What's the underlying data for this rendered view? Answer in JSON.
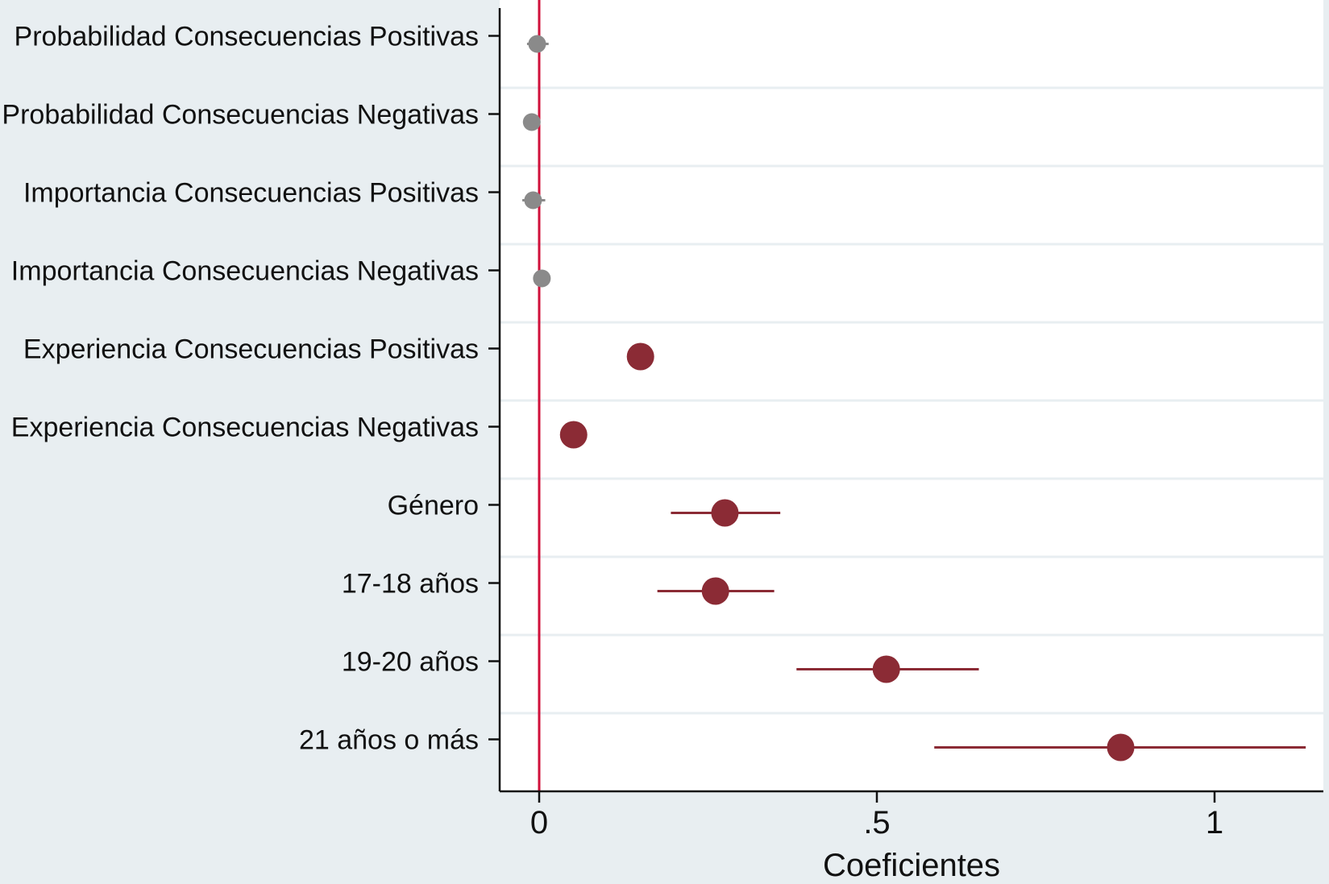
{
  "chart_data": {
    "type": "scatter",
    "title": "",
    "xlabel": "Coeficientes",
    "ylabel": "",
    "xlim": [
      -0.06,
      1.16
    ],
    "x_ticks": [
      {
        "value": 0,
        "label": "0"
      },
      {
        "value": 0.5,
        "label": ".5"
      },
      {
        "value": 1,
        "label": "1"
      }
    ],
    "grid": "horizontal",
    "reference_line": {
      "x": 0,
      "color": "#d0103a"
    },
    "colors": {
      "significant": "#8b2b35",
      "non_significant": "#8a8a8a",
      "axis": "#111111",
      "grid": "#e8eef1",
      "plot_background": "#ffffff",
      "figure_background": "#e8eef1"
    },
    "points": [
      {
        "label": "Probabilidad Consecuencias Positivas",
        "estimate": -0.003,
        "ci_low": -0.018,
        "ci_high": 0.014,
        "significant": false
      },
      {
        "label": "Probabilidad Consecuencias Negativas",
        "estimate": -0.011,
        "ci_low": -0.022,
        "ci_high": 0.001,
        "significant": false
      },
      {
        "label": "Importancia Consecuencias Positivas",
        "estimate": -0.009,
        "ci_low": -0.025,
        "ci_high": 0.009,
        "significant": false
      },
      {
        "label": "Importancia Consecuencias Negativas",
        "estimate": 0.004,
        "ci_low": -0.006,
        "ci_high": 0.014,
        "significant": false
      },
      {
        "label": "Experiencia Consecuencias Positivas",
        "estimate": 0.15,
        "ci_low": 0.135,
        "ci_high": 0.165,
        "significant": true
      },
      {
        "label": "Experiencia Consecuencias Negativas",
        "estimate": 0.051,
        "ci_low": 0.038,
        "ci_high": 0.064,
        "significant": true
      },
      {
        "label": "Género",
        "estimate": 0.275,
        "ci_low": 0.195,
        "ci_high": 0.357,
        "significant": true
      },
      {
        "label": "17-18 años",
        "estimate": 0.261,
        "ci_low": 0.175,
        "ci_high": 0.348,
        "significant": true
      },
      {
        "label": "19-20 años",
        "estimate": 0.514,
        "ci_low": 0.381,
        "ci_high": 0.651,
        "significant": true
      },
      {
        "label": "21 años o más",
        "estimate": 0.861,
        "ci_low": 0.585,
        "ci_high": 1.135,
        "significant": true
      }
    ]
  }
}
